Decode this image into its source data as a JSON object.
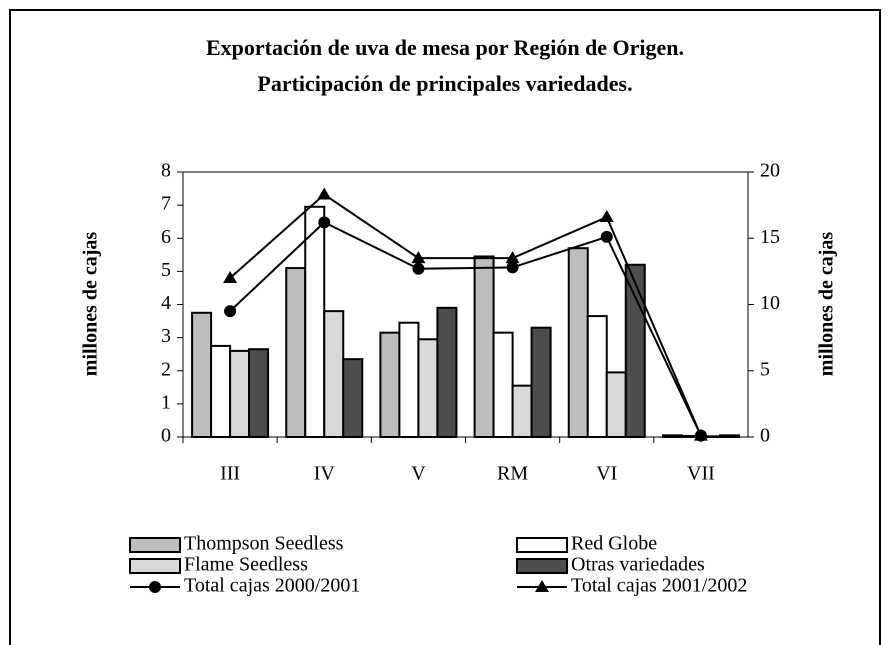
{
  "chart_data": {
    "type": "bar",
    "title": [
      "Exportación de uva de mesa por Región de Origen.",
      "Participación de principales variedades."
    ],
    "y_label": "millones de cajas",
    "y2_label": "millones de cajas",
    "categories": [
      "III",
      "IV",
      "V",
      "RM",
      "VI",
      "VII"
    ],
    "series": [
      {
        "name": "Thompson Seedless",
        "color": "#bdbdbd",
        "values": [
          3.75,
          5.1,
          3.15,
          5.45,
          5.7,
          0.05
        ]
      },
      {
        "name": "Red Globe",
        "color": "#ffffff",
        "values": [
          2.75,
          6.95,
          3.45,
          3.15,
          3.65,
          0.03
        ]
      },
      {
        "name": "Flame Seedless",
        "color": "#d9d9d9",
        "values": [
          2.6,
          3.8,
          2.95,
          1.55,
          1.95,
          0.02
        ]
      },
      {
        "name": "Otras variedades",
        "color": "#4d4d4d",
        "values": [
          2.65,
          2.35,
          3.9,
          3.3,
          5.2,
          0.05
        ]
      },
      {
        "name": "Total cajas 2000/2001",
        "type": "line",
        "marker": "circle",
        "axis": "y2",
        "color": "#000000",
        "values": [
          9.5,
          16.2,
          12.7,
          12.8,
          15.1,
          0.1
        ]
      },
      {
        "name": "Total cajas 2001/2002",
        "type": "line",
        "marker": "triangle",
        "axis": "y2",
        "color": "#000000",
        "values": [
          12,
          18.3,
          13.5,
          13.5,
          16.6,
          0.1
        ]
      }
    ],
    "ylim": [
      0,
      8
    ],
    "yticks": [
      0,
      1,
      2,
      3,
      4,
      5,
      6,
      7,
      8
    ],
    "y2lim": [
      0,
      20
    ],
    "y2ticks": [
      0,
      5,
      10,
      15,
      20
    ],
    "grid": false,
    "legend": "bottom"
  }
}
